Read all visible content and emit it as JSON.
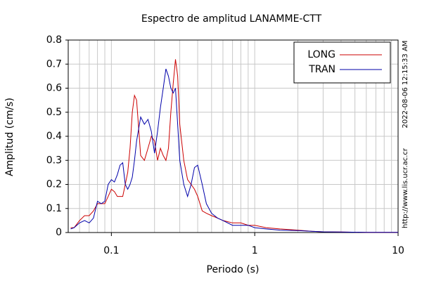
{
  "chart_data": {
    "type": "line",
    "title": "Espectro de amplitud LANAMME-CTT",
    "x_label": "Periodo (s)",
    "y_label": "Amplitud (cm/s)",
    "annotations": [
      "2022-08-06 12:15:33 AM",
      "http://www.lis.ucr.ac.cr"
    ],
    "xscale": "log",
    "grid": true,
    "legend": "upper right",
    "xlim": [
      0.05,
      10
    ],
    "xticks": [
      0.1,
      1,
      10
    ],
    "ylim": [
      0,
      0.8
    ],
    "yticks": [
      0,
      0.1,
      0.2,
      0.3,
      0.4,
      0.5,
      0.6,
      0.7,
      0.8
    ],
    "x": [
      0.052,
      0.055,
      0.06,
      0.065,
      0.07,
      0.075,
      0.08,
      0.085,
      0.09,
      0.095,
      0.1,
      0.105,
      0.11,
      0.115,
      0.12,
      0.125,
      0.13,
      0.135,
      0.14,
      0.145,
      0.15,
      0.16,
      0.17,
      0.18,
      0.19,
      0.2,
      0.21,
      0.22,
      0.23,
      0.24,
      0.25,
      0.26,
      0.27,
      0.28,
      0.29,
      0.3,
      0.32,
      0.34,
      0.36,
      0.38,
      0.4,
      0.43,
      0.46,
      0.5,
      0.55,
      0.6,
      0.7,
      0.8,
      0.9,
      1,
      1.2,
      1.5,
      2,
      2.5,
      3,
      4,
      6,
      10
    ],
    "series": [
      {
        "name": "LONG",
        "color": "#cc0000",
        "values": [
          0.02,
          0.02,
          0.05,
          0.07,
          0.07,
          0.09,
          0.12,
          0.12,
          0.12,
          0.15,
          0.18,
          0.17,
          0.15,
          0.15,
          0.15,
          0.2,
          0.25,
          0.35,
          0.5,
          0.57,
          0.55,
          0.32,
          0.3,
          0.35,
          0.4,
          0.38,
          0.3,
          0.35,
          0.32,
          0.3,
          0.35,
          0.5,
          0.62,
          0.72,
          0.65,
          0.45,
          0.3,
          0.22,
          0.2,
          0.18,
          0.15,
          0.09,
          0.08,
          0.07,
          0.06,
          0.05,
          0.04,
          0.04,
          0.03,
          0.03,
          0.02,
          0.015,
          0.01,
          0.005,
          0.003,
          0.002,
          0.001,
          0.001
        ]
      },
      {
        "name": "TRAN",
        "color": "#0000aa",
        "values": [
          0.015,
          0.02,
          0.04,
          0.05,
          0.04,
          0.06,
          0.13,
          0.12,
          0.13,
          0.2,
          0.22,
          0.21,
          0.24,
          0.28,
          0.29,
          0.2,
          0.18,
          0.2,
          0.23,
          0.3,
          0.38,
          0.48,
          0.45,
          0.47,
          0.42,
          0.33,
          0.42,
          0.52,
          0.6,
          0.68,
          0.65,
          0.6,
          0.58,
          0.6,
          0.45,
          0.3,
          0.2,
          0.15,
          0.2,
          0.27,
          0.28,
          0.2,
          0.12,
          0.08,
          0.06,
          0.05,
          0.03,
          0.03,
          0.03,
          0.02,
          0.015,
          0.01,
          0.008,
          0.005,
          0.003,
          0.002,
          0.001,
          0.001
        ]
      }
    ]
  }
}
